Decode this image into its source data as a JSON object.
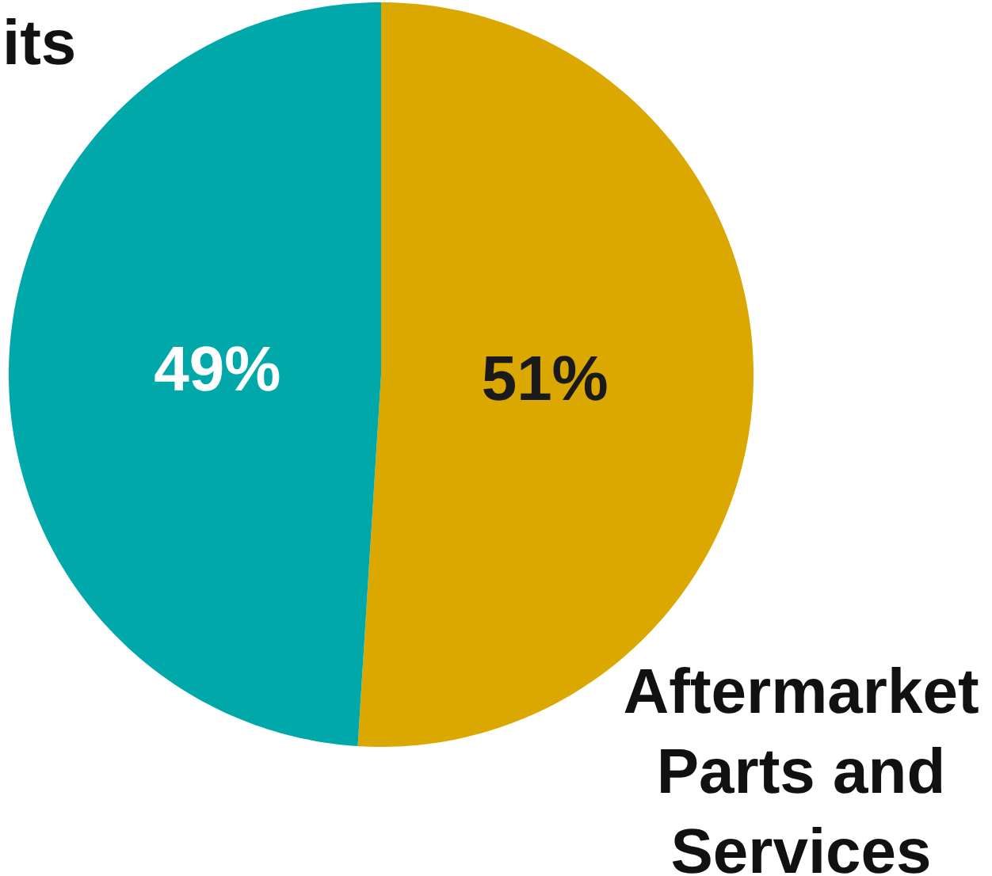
{
  "chart_data": {
    "type": "pie",
    "categories": [
      "Aftermarket Parts and Services",
      "its"
    ],
    "values": [
      51,
      49
    ],
    "colors": [
      "#daa800",
      "#00a8aa"
    ],
    "value_labels": [
      "51%",
      "49%"
    ]
  }
}
